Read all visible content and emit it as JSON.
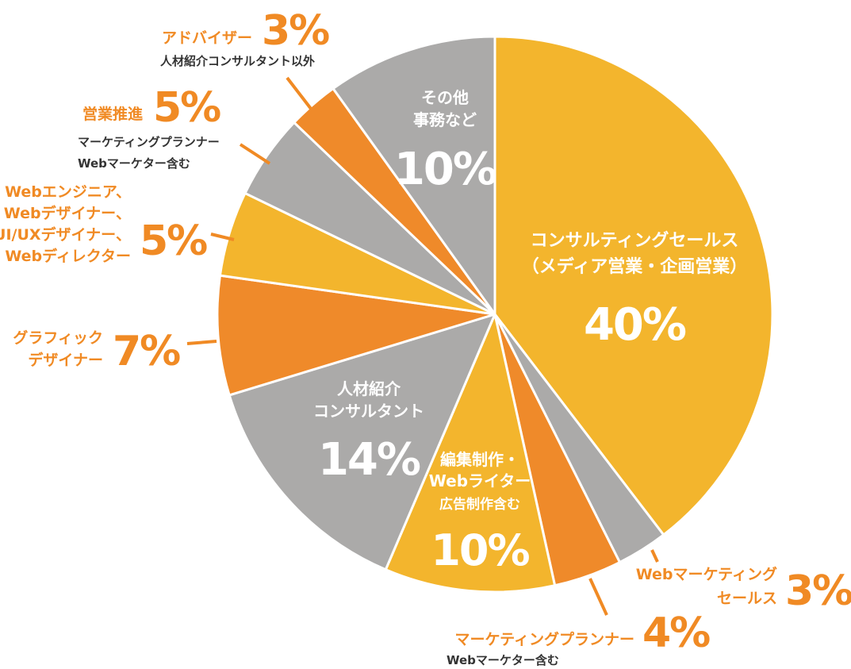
{
  "colors": {
    "yellow": "#f3b52d",
    "orange": "#ef8a2a",
    "gray": "#abaaa9",
    "label_orange": "#f08a24",
    "sub_text": "#333333"
  },
  "chart_data": {
    "type": "pie",
    "slices": [
      {
        "label": "コンサルティングセールス（メディア営業・企画営業）",
        "value": 40,
        "pct_label": "40%",
        "color": "#f3b52d",
        "name_lines": [
          "コンサルティングセールス",
          "（メディア営業・企画営業）"
        ]
      },
      {
        "label": "Webマーケティングセールス",
        "value": 3,
        "pct_label": "3%",
        "color": "#abaaa9",
        "name_lines": [
          "Webマーケティング",
          "セールス"
        ]
      },
      {
        "label": "マーケティングプランナー",
        "value": 4,
        "pct_label": "4%",
        "color": "#ef8a2a",
        "name_lines": [
          "マーケティングプランナー"
        ],
        "note_lines": [
          "Webマーケター含む"
        ]
      },
      {
        "label": "編集制作・Webライター",
        "value": 10,
        "pct_label": "10%",
        "color": "#f3b52d",
        "name_lines": [
          "編集制作・",
          "Webライター"
        ],
        "note_lines": [
          "広告制作含む"
        ]
      },
      {
        "label": "人材紹介コンサルタント",
        "value": 14,
        "pct_label": "14%",
        "color": "#abaaa9",
        "name_lines": [
          "人材紹介",
          "コンサルタント"
        ]
      },
      {
        "label": "グラフィックデザイナー",
        "value": 7,
        "pct_label": "7%",
        "color": "#ef8a2a",
        "name_lines": [
          "グラフィック",
          "デザイナー"
        ]
      },
      {
        "label": "Webエンジニア、Webデザイナー、UI/UXデザイナー、Webディレクター",
        "value": 5,
        "pct_label": "5%",
        "color": "#f3b52d",
        "name_lines": [
          "Webエンジニア、",
          "Webデザイナー、",
          "UI/UXデザイナー、",
          "Webディレクター"
        ]
      },
      {
        "label": "営業推進",
        "value": 5,
        "pct_label": "5%",
        "color": "#abaaa9",
        "name_lines": [
          "営業推進"
        ],
        "note_lines": [
          "マーケティングプランナー",
          "Webマーケター含む"
        ]
      },
      {
        "label": "アドバイザー",
        "value": 3,
        "pct_label": "3%",
        "color": "#ef8a2a",
        "name_lines": [
          "アドバイザー"
        ],
        "note_lines": [
          "人材紹介コンサルタント以外"
        ]
      },
      {
        "label": "その他事務など",
        "value": 10,
        "pct_label": "10%",
        "color": "#abaaa9",
        "name_lines": [
          "その他",
          "事務など"
        ]
      }
    ]
  }
}
